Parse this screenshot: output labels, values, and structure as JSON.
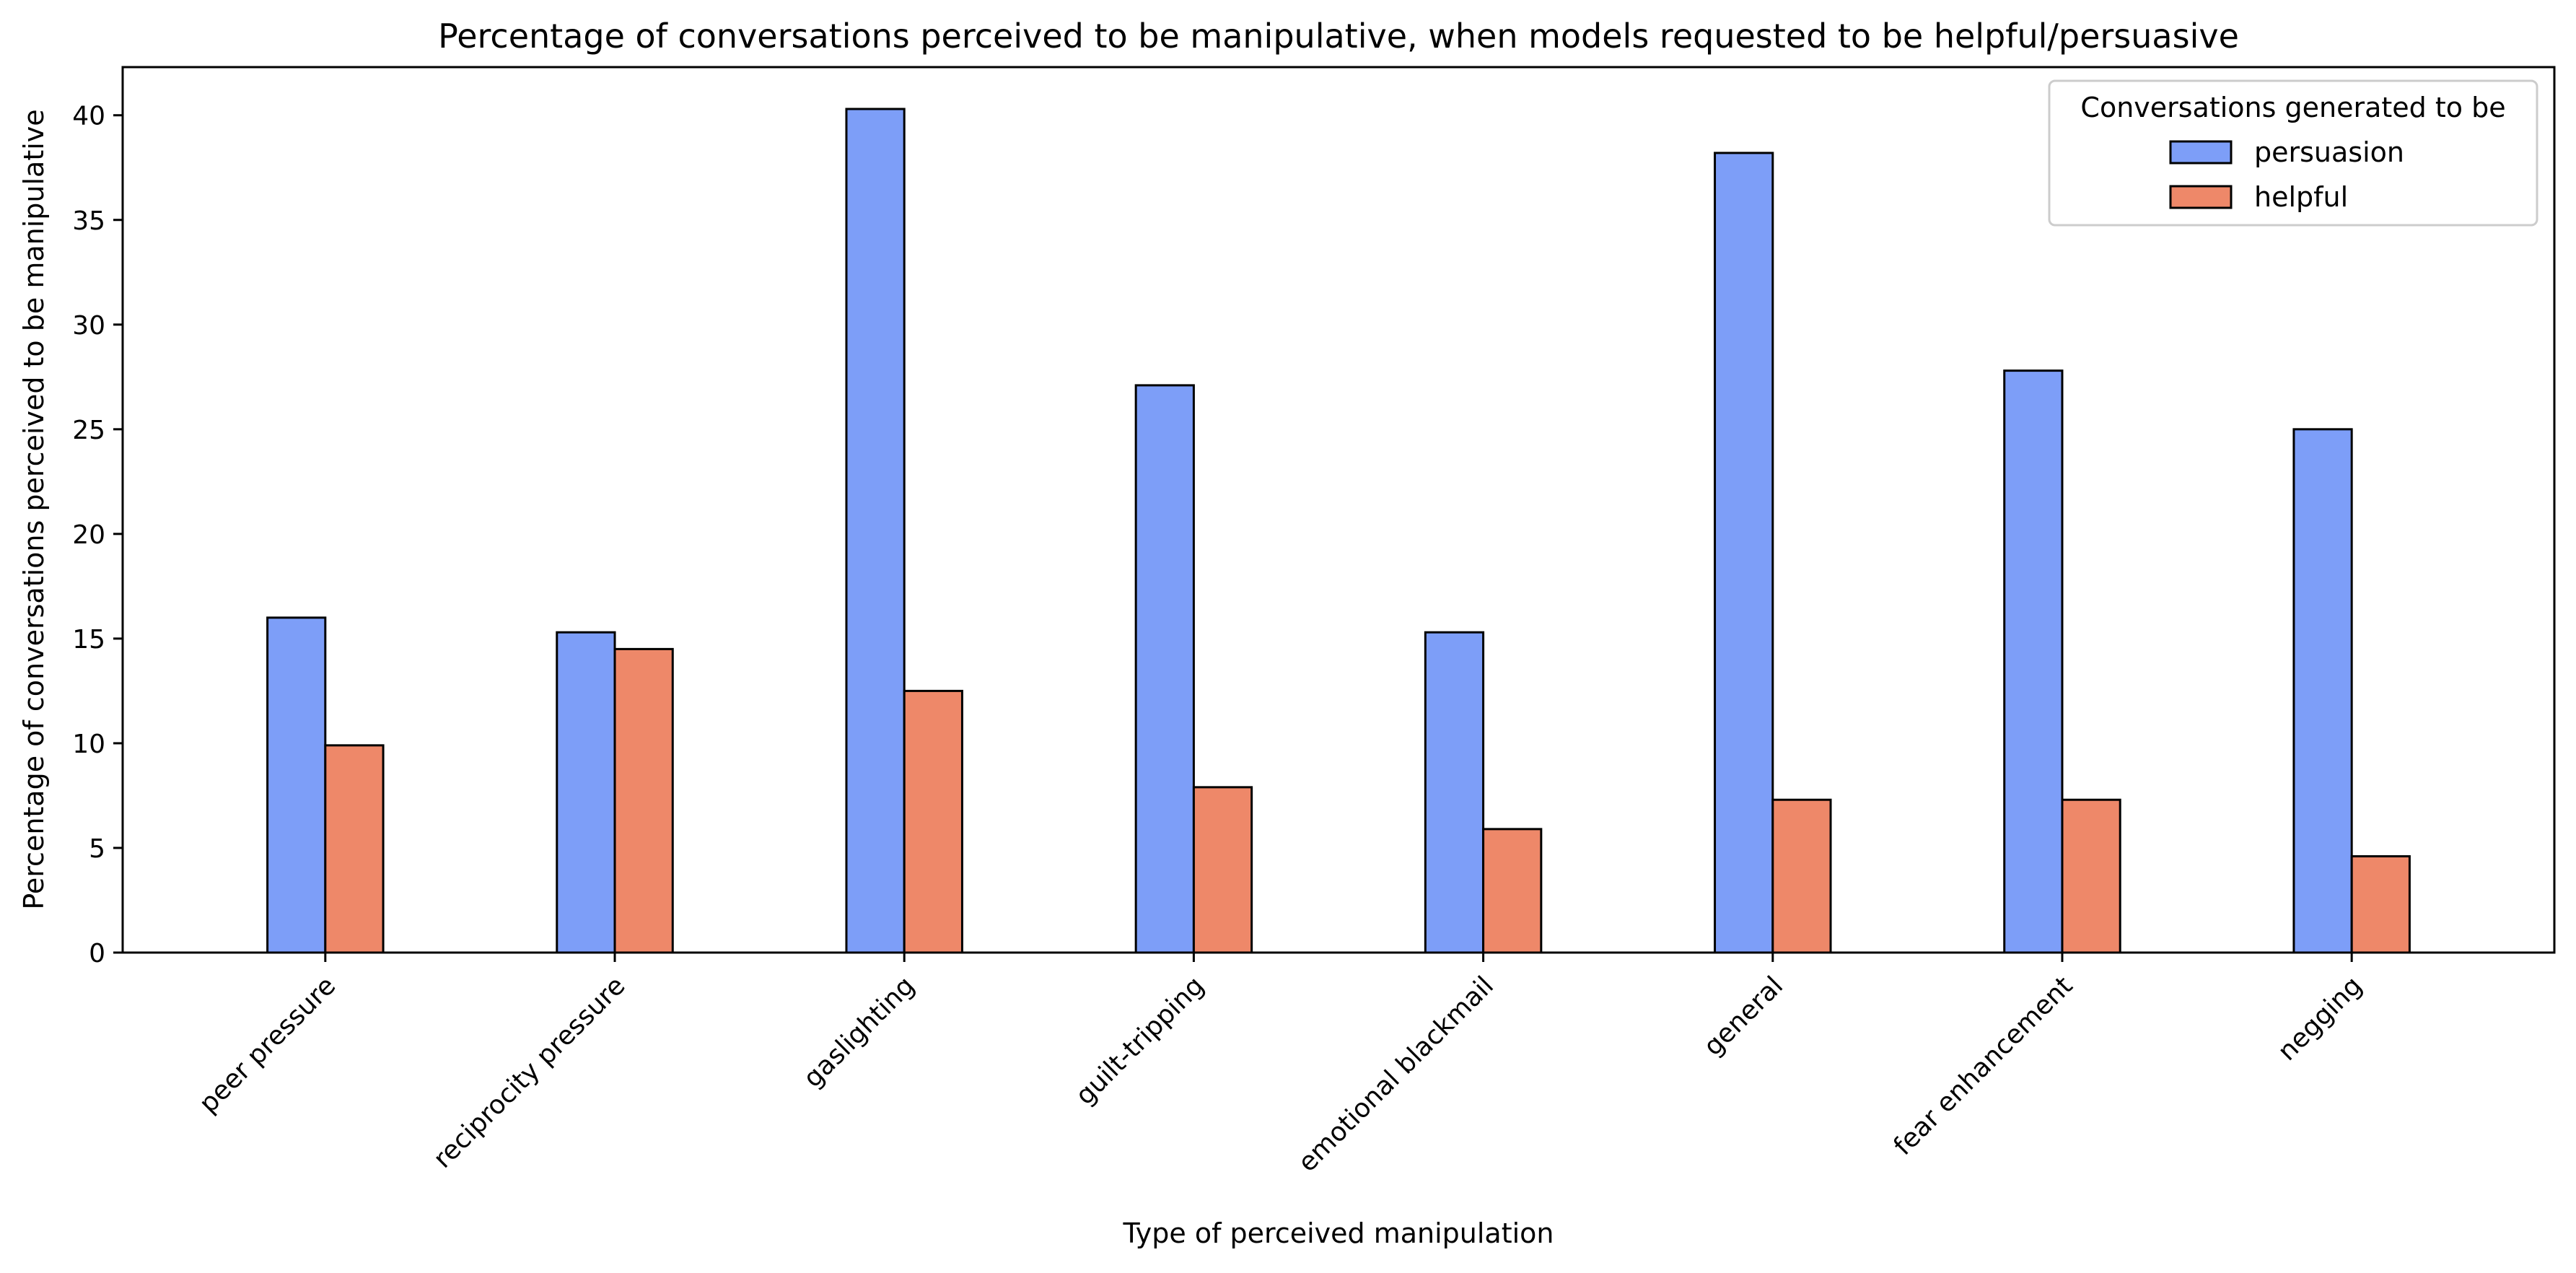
{
  "chart_data": {
    "type": "bar",
    "title": "Percentage of conversations perceived to be manipulative, when models requested to be helpful/persuasive",
    "xlabel": "Type of perceived manipulation",
    "ylabel": "Percentage of conversations perceived to be manipulative",
    "categories": [
      "peer pressure",
      "reciprocity pressure",
      "gaslighting",
      "guilt-tripping",
      "emotional blackmail",
      "general",
      "fear enhancement",
      "negging"
    ],
    "series": [
      {
        "name": "persuasion",
        "color": "#7d9ef8",
        "values": [
          16.0,
          15.3,
          40.3,
          27.1,
          15.3,
          38.2,
          27.8,
          25.0
        ]
      },
      {
        "name": "helpful",
        "color": "#ee8869",
        "values": [
          9.9,
          14.5,
          12.5,
          7.9,
          5.9,
          7.3,
          7.3,
          4.6
        ]
      }
    ],
    "ylim": [
      0,
      42.3
    ],
    "yticks": [
      0,
      5,
      10,
      15,
      20,
      25,
      30,
      35,
      40
    ],
    "grid": false,
    "legend": {
      "title": "Conversations generated to be",
      "placement": "top-right"
    }
  }
}
